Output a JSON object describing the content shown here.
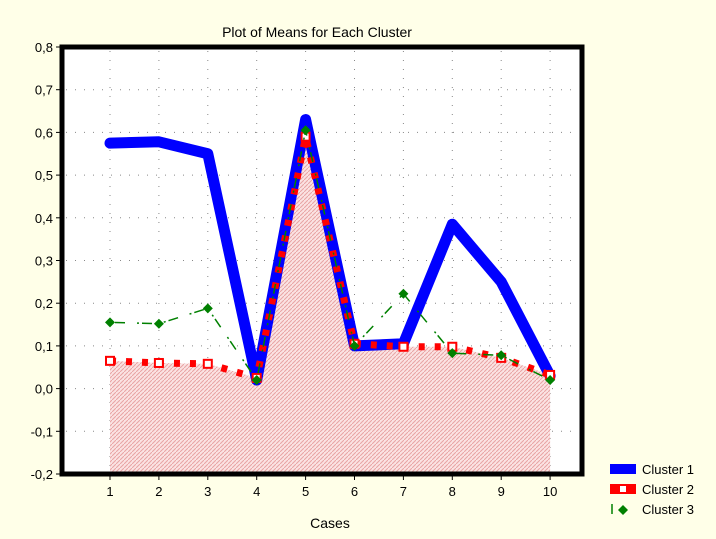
{
  "chart_data": {
    "type": "line",
    "title": "Plot of Means for Each Cluster",
    "xlabel": "Cases",
    "ylabel": "",
    "categories": [
      "1",
      "2",
      "3",
      "4",
      "5",
      "6",
      "7",
      "8",
      "9",
      "10"
    ],
    "y_ticks": [
      "0,8",
      "0,7",
      "0,6",
      "0,5",
      "0,4",
      "0,3",
      "0,2",
      "0,1",
      "0,0",
      "-0,1",
      "-0,2"
    ],
    "ylim": [
      -0.2,
      0.8
    ],
    "grid": true,
    "legend": "bottom-right",
    "series": [
      {
        "name": "Cluster 1",
        "color": "#0000ff",
        "style": "thick-solid",
        "values": [
          0.575,
          0.578,
          0.55,
          0.02,
          0.63,
          0.1,
          0.105,
          0.385,
          0.25,
          0.03
        ]
      },
      {
        "name": "Cluster 2",
        "color": "#ff0000",
        "style": "dotted-squares-area",
        "values": [
          0.065,
          0.06,
          0.058,
          0.025,
          0.59,
          0.105,
          0.098,
          0.098,
          0.072,
          0.032
        ]
      },
      {
        "name": "Cluster 3",
        "color": "#008000",
        "style": "dashed-diamonds",
        "values": [
          0.155,
          0.152,
          0.188,
          0.02,
          0.605,
          0.1,
          0.222,
          0.083,
          0.078,
          0.02
        ]
      }
    ]
  },
  "colors": {
    "background": "#ffffe8",
    "plot_area": "#ffffff",
    "area_fill": "#f4c9c9",
    "frame": "#000000"
  }
}
